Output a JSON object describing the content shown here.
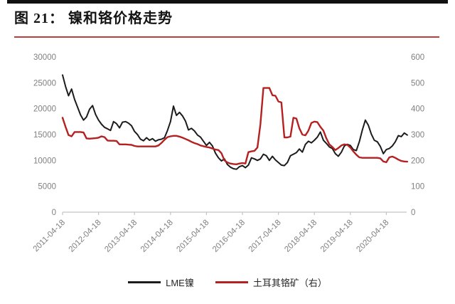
{
  "header": {
    "title": "图 21： 镍和铬价格走势"
  },
  "colors": {
    "top_bar": "#111111",
    "title_text": "#141414",
    "title_underline": "#c43b3b",
    "axis_text": "#808080",
    "axis_line": "#c3c3c3",
    "nickel_line": "#1c1c1c",
    "chrome_line": "#b52020"
  },
  "chart_data": {
    "type": "line",
    "title": "镍和铬价格走势",
    "x_start": "2011-04",
    "x_step_months": 1,
    "x_tick_labels": [
      "2011-04-18",
      "2012-04-18",
      "2013-04-18",
      "2014-04-18",
      "2015-04-18",
      "2016-04-18",
      "2017-04-18",
      "2018-04-18",
      "2019-04-18",
      "2020-04-18"
    ],
    "left_axis": {
      "min": 0,
      "max": 30000,
      "tick_step": 5000,
      "applies_to": "LME镍"
    },
    "right_axis": {
      "min": 0,
      "max": 600,
      "tick_step": 100,
      "applies_to": "土耳其铬矿（右）"
    },
    "grid": false,
    "legend_position": "bottom",
    "series": [
      {
        "name": "LME镍",
        "axis": "left",
        "color": "#1c1c1c",
        "values": [
          26500,
          24300,
          22500,
          23800,
          21800,
          20300,
          18800,
          17800,
          18400,
          19900,
          20600,
          18900,
          17800,
          17000,
          16400,
          16100,
          15800,
          17500,
          17100,
          16300,
          17400,
          17500,
          17200,
          16700,
          15600,
          15000,
          14100,
          13800,
          14400,
          13900,
          14200,
          13700,
          14000,
          14100,
          14400,
          15800,
          17500,
          20500,
          18700,
          19300,
          18600,
          17600,
          15900,
          16200,
          15700,
          14900,
          14500,
          13700,
          12900,
          13500,
          12800,
          11400,
          10500,
          9900,
          10300,
          9200,
          8700,
          8400,
          8300,
          8800,
          9000,
          8600,
          9100,
          10500,
          10300,
          10000,
          10300,
          11200,
          10900,
          10000,
          10800,
          10100,
          9600,
          9100,
          9000,
          9600,
          10900,
          11200,
          11500,
          12200,
          11600,
          13100,
          13700,
          13400,
          13900,
          14500,
          15500,
          13900,
          13300,
          12600,
          12300,
          11300,
          10800,
          11600,
          12800,
          13100,
          12900,
          12100,
          11900,
          13600,
          15900,
          17800,
          16800,
          15100,
          13900,
          13600,
          12700,
          11300,
          12100,
          12300,
          12800,
          13600,
          14800,
          14600,
          15300,
          14900
        ]
      },
      {
        "name": "土耳其铬矿（右）",
        "axis": "right",
        "color": "#b52020",
        "values": [
          365,
          330,
          298,
          293,
          310,
          310,
          310,
          308,
          285,
          284,
          285,
          286,
          288,
          293,
          290,
          277,
          276,
          276,
          275,
          262,
          262,
          262,
          261,
          260,
          256,
          254,
          254,
          254,
          254,
          254,
          254,
          254,
          258,
          268,
          280,
          290,
          293,
          295,
          295,
          292,
          288,
          283,
          278,
          272,
          267,
          263,
          258,
          255,
          252,
          250,
          246,
          242,
          240,
          228,
          200,
          192,
          188,
          186,
          185,
          188,
          190,
          188,
          232,
          235,
          237,
          250,
          340,
          480,
          480,
          480,
          452,
          450,
          428,
          424,
          289,
          289,
          292,
          365,
          362,
          324,
          300,
          297,
          315,
          345,
          350,
          348,
          330,
          315,
          285,
          262,
          252,
          240,
          248,
          258,
          262,
          260,
          250,
          235,
          222,
          212,
          210,
          210,
          210,
          210,
          210,
          210,
          208,
          196,
          193,
          212,
          215,
          210,
          203,
          198,
          196,
          195
        ]
      }
    ]
  }
}
